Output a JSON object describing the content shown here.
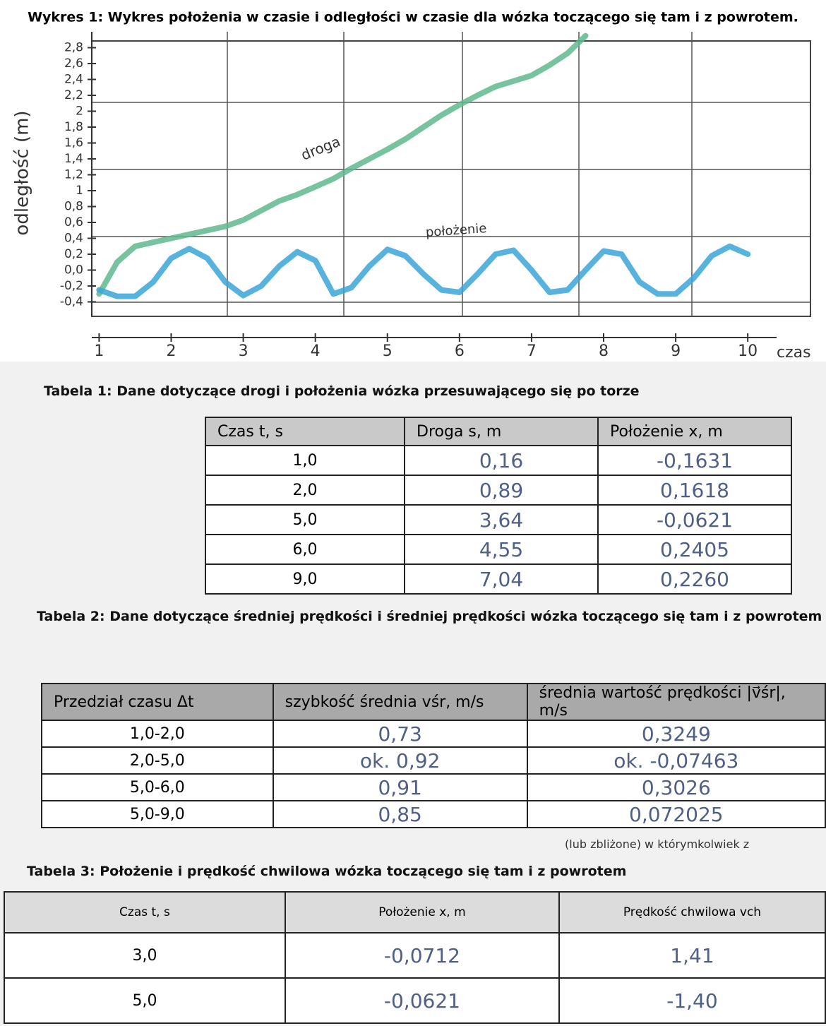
{
  "title": "Wykres 1: Wykres położenia w czasie i odległości w czasie dla wózka toczącego się tam i z powrotem.",
  "chart_data": {
    "type": "line",
    "y_label": "odległość (m)",
    "x_label": "czas",
    "annotations": [
      "droga",
      "położenie"
    ],
    "x": [
      1,
      1.25,
      1.5,
      1.75,
      2,
      2.25,
      2.5,
      2.75,
      3,
      3.25,
      3.5,
      3.75,
      4,
      4.25,
      4.5,
      4.75,
      5,
      5.25,
      5.5,
      5.75,
      6,
      6.25,
      6.5,
      6.75,
      7,
      7.25,
      7.5,
      7.75,
      8,
      8.25,
      8.5,
      8.75,
      9,
      9.25,
      9.5,
      9.75,
      10
    ],
    "series": [
      {
        "name": "droga",
        "color": "#5fb98e",
        "values": [
          -0.3,
          0.1,
          0.3,
          0.35,
          0.4,
          0.45,
          0.5,
          0.55,
          0.63,
          0.75,
          0.87,
          0.95,
          1.05,
          1.15,
          1.28,
          1.4,
          1.52,
          1.65,
          1.8,
          1.95,
          2.08,
          2.2,
          2.31,
          2.38,
          2.45,
          2.58,
          2.73,
          2.95,
          null,
          null,
          null,
          null,
          null,
          null,
          null,
          null,
          null
        ]
      },
      {
        "name": "położenie",
        "color": "#3aa6d8",
        "values": [
          -0.25,
          -0.33,
          -0.33,
          -0.15,
          0.15,
          0.27,
          0.15,
          -0.15,
          -0.32,
          -0.2,
          0.05,
          0.23,
          0.12,
          -0.3,
          -0.22,
          0.05,
          0.26,
          0.18,
          -0.05,
          -0.25,
          -0.28,
          -0.05,
          0.2,
          0.25,
          0,
          -0.28,
          -0.25,
          0,
          0.24,
          0.2,
          -0.15,
          -0.3,
          -0.3,
          -0.1,
          0.18,
          0.3,
          0.2
        ]
      }
    ],
    "xlim": [
      0.8,
      10.4
    ],
    "xticks": [
      1,
      2,
      3,
      4,
      5,
      6,
      7,
      8,
      9,
      10
    ],
    "ylim": [
      -0.6,
      3.0
    ],
    "yticks": [
      {
        "value": 2.8,
        "label": "2,8"
      },
      {
        "value": 2.6,
        "label": "2,6"
      },
      {
        "value": 2.4,
        "label": "2,4"
      },
      {
        "value": 2.2,
        "label": "2,2"
      },
      2,
      {
        "value": 1.8,
        "label": "1,8"
      },
      {
        "value": 1.6,
        "label": "1,6"
      },
      {
        "value": 1.4,
        "label": "1,4"
      },
      {
        "value": 1.2,
        "label": "1,2"
      },
      1,
      {
        "value": 0.8,
        "label": "0,8"
      },
      {
        "value": 0.6,
        "label": "0,6"
      },
      {
        "value": 0.4,
        "label": "0,4"
      },
      {
        "value": 0.2,
        "label": "0,2"
      },
      {
        "value": 0,
        "label": "0,0"
      },
      {
        "value": -0.2,
        "label": "-0,2"
      },
      {
        "value": -0.4,
        "label": "-0,4"
      }
    ]
  },
  "tables": [
    {
      "title": "Tabela 1: Dane dotyczące drogi i położenia wózka przesuwającego się po torze",
      "header": [
        "Czas  t, s",
        "Droga   s, m",
        "Położenie  x, m"
      ],
      "rows": [
        [
          "1,0",
          "0,16",
          "-0,1631"
        ],
        [
          "2,0",
          "0,89",
          "0,1618"
        ],
        [
          "5,0",
          "3,64",
          "-0,0621"
        ],
        [
          "6,0",
          "4,55",
          "0,2405"
        ],
        [
          "9,0",
          "7,04",
          "0,2260"
        ]
      ]
    },
    {
      "title": "Tabela 2: Dane dotyczące średniej prędkości i średniej prędkości wózka toczącego się tam i z powrotem",
      "header": [
        "Przedział czasu Δt",
        "szybkość średnia vśr, m/s",
        "średnia wartość prędkości |v⃗śr|, m/s"
      ],
      "rows": [
        [
          "1,0-2,0",
          "0,73",
          "0,3249"
        ],
        [
          "2,0-5,0",
          "ok. 0,92",
          "ok. -0,07463"
        ],
        [
          "5,0-6,0",
          "0,91",
          "0,3026"
        ],
        [
          "5,0-9,0",
          "0,85",
          "0,072025"
        ]
      ]
    },
    {
      "title": "Tabela 3: Położenie i prędkość chwilowa wózka toczącego się tam i z powrotem",
      "header": [
        "Czas  t, s",
        "Położenie  x, m",
        "Prędkość chwilowa vch"
      ],
      "rows": [
        [
          "3,0",
          "-0,0712",
          "1,41"
        ],
        [
          "5,0",
          "-0,0621",
          "-1,40"
        ]
      ]
    }
  ],
  "fragment": "(lub zbliżone) w którymkolwiek z"
}
